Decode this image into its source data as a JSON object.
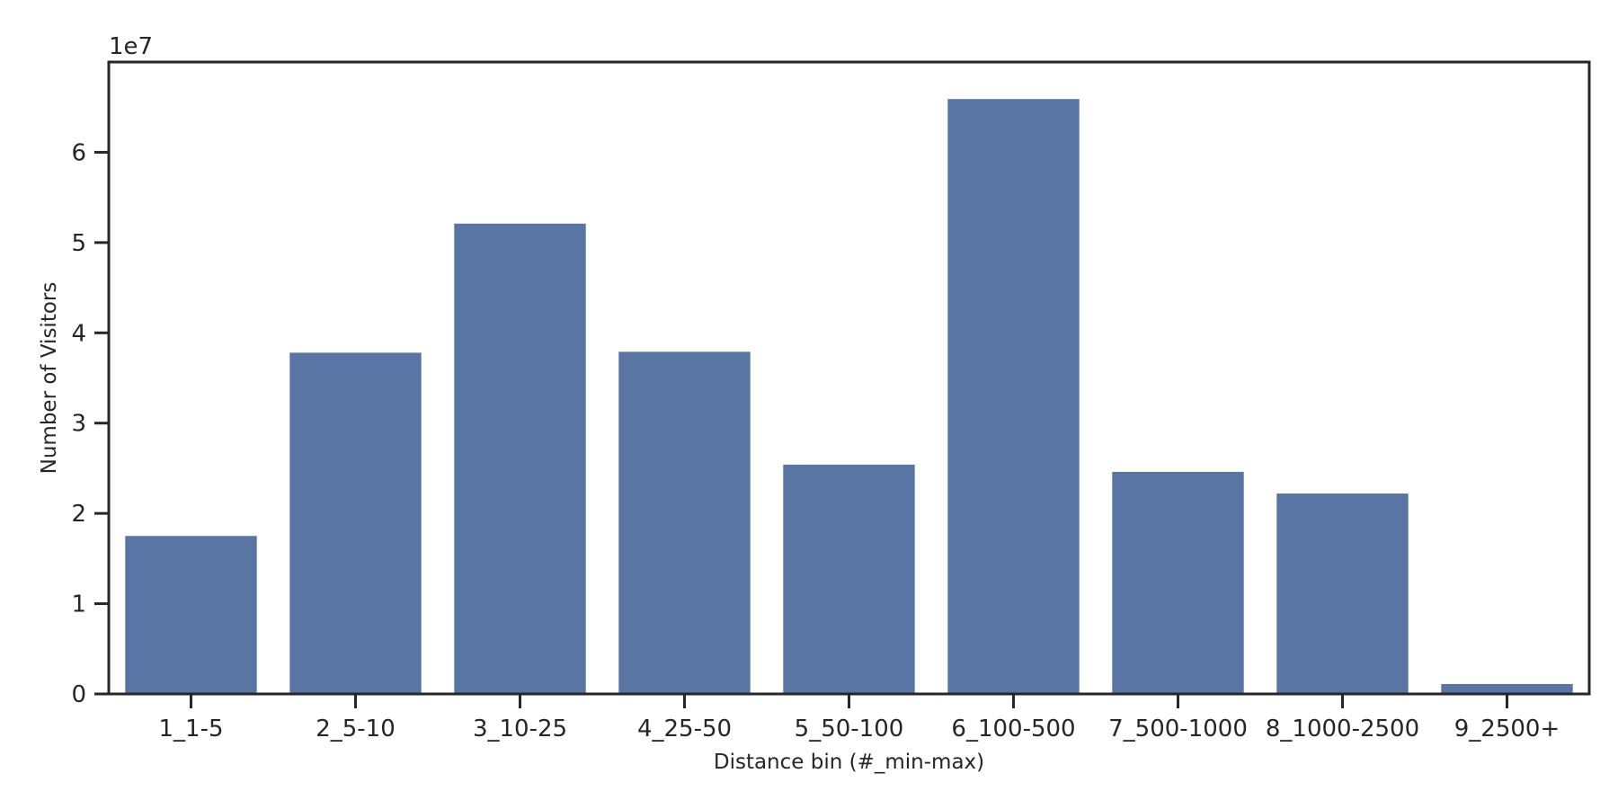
{
  "chart_data": {
    "type": "bar",
    "categories": [
      "1_1-5",
      "2_5-10",
      "3_10-25",
      "4_25-50",
      "5_50-100",
      "6_100-500",
      "7_500-1000",
      "8_1000-2500",
      "9_2500+"
    ],
    "values": [
      17500000,
      37800000,
      52100000,
      37900000,
      25400000,
      65900000,
      24600000,
      22200000,
      1100000
    ],
    "xlabel": "Distance bin (#_min-max)",
    "ylabel": "Number of Visitors",
    "y_offset_text": "1e7",
    "ylim": [
      0,
      70000000
    ],
    "yticks": [
      0,
      10000000,
      20000000,
      30000000,
      40000000,
      50000000,
      60000000
    ],
    "ytick_labels": [
      "0",
      "1",
      "2",
      "3",
      "4",
      "5",
      "6"
    ],
    "bar_color": "#5975a4",
    "frame_color": "#262626",
    "grid": false,
    "legend": "none"
  }
}
